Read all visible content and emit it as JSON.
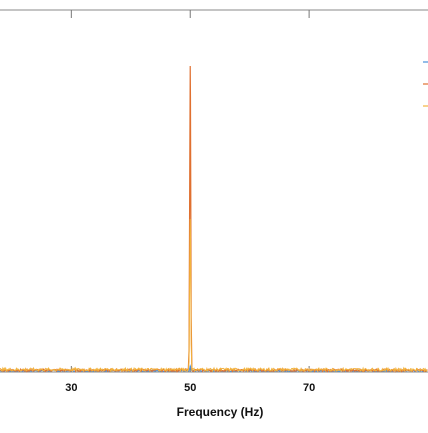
{
  "chart_data": {
    "type": "line",
    "title": "",
    "xlabel": "Frequency (Hz)",
    "ylabel": "",
    "xlim": [
      18,
      90
    ],
    "ylim": [
      0,
      1
    ],
    "xticks": [
      30,
      50,
      70
    ],
    "xtick_labels": [
      "30",
      "50",
      "70"
    ],
    "grid": false,
    "legend": "top-right",
    "series": [
      {
        "color": "#4a90d9",
        "peak_frequency": 50,
        "peak_value": 0.02,
        "baseline": 0.004
      },
      {
        "color": "#e07030",
        "peak_frequency": 50,
        "peak_value": 1.0,
        "baseline": 0.006
      },
      {
        "color": "#f2b33d",
        "peak_frequency": 50,
        "peak_value": 0.5,
        "baseline": 0.008
      }
    ]
  }
}
